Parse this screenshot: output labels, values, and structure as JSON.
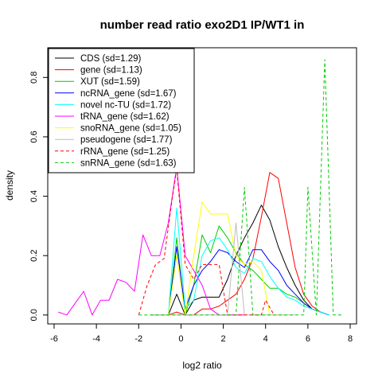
{
  "chart_data": {
    "type": "line",
    "title": "number read ratio exo2D1 IP/WT1 in",
    "xlabel": "log2 ratio",
    "ylabel": "density",
    "xlim": [
      -6.3,
      8.3
    ],
    "ylim": [
      -0.03,
      0.9
    ],
    "x_ticks": [
      -6,
      -4,
      -2,
      0,
      2,
      4,
      6,
      8
    ],
    "y_ticks": [
      0.0,
      0.2,
      0.4,
      0.6,
      0.8
    ],
    "legend_position": "top-left",
    "grid": false,
    "series": [
      {
        "name": "CDS (sd=1.29)",
        "color": "#000000",
        "dash": "solid",
        "points": [
          [
            -1.4,
            0.0
          ],
          [
            -1.0,
            0.0
          ],
          [
            -0.6,
            0.0
          ],
          [
            -0.2,
            0.07
          ],
          [
            0.2,
            0.0
          ],
          [
            0.6,
            0.05
          ],
          [
            1.0,
            0.06
          ],
          [
            1.4,
            0.06
          ],
          [
            1.8,
            0.06
          ],
          [
            2.2,
            0.12
          ],
          [
            2.6,
            0.2
          ],
          [
            3.0,
            0.26
          ],
          [
            3.4,
            0.31
          ],
          [
            3.8,
            0.37
          ],
          [
            4.2,
            0.32
          ],
          [
            4.6,
            0.23
          ],
          [
            5.0,
            0.16
          ],
          [
            5.4,
            0.1
          ],
          [
            5.8,
            0.05
          ],
          [
            6.2,
            0.02
          ],
          [
            6.6,
            0.01
          ],
          [
            7.0,
            0.0
          ]
        ]
      },
      {
        "name": "gene (sd=1.13)",
        "color": "#ff0000",
        "dash": "solid",
        "points": [
          [
            -1.4,
            0.0
          ],
          [
            -1.0,
            0.0
          ],
          [
            -0.6,
            0.0
          ],
          [
            -0.2,
            0.01
          ],
          [
            0.2,
            0.0
          ],
          [
            0.6,
            0.0
          ],
          [
            1.0,
            0.02
          ],
          [
            1.4,
            0.02
          ],
          [
            1.8,
            0.03
          ],
          [
            2.2,
            0.05
          ],
          [
            2.6,
            0.07
          ],
          [
            3.0,
            0.12
          ],
          [
            3.4,
            0.19
          ],
          [
            3.8,
            0.33
          ],
          [
            4.2,
            0.48
          ],
          [
            4.6,
            0.46
          ],
          [
            5.0,
            0.31
          ],
          [
            5.4,
            0.16
          ],
          [
            5.8,
            0.07
          ],
          [
            6.2,
            0.03
          ],
          [
            6.6,
            0.01
          ],
          [
            7.0,
            0.0
          ]
        ]
      },
      {
        "name": "XUT (sd=1.59)",
        "color": "#00cc00",
        "dash": "solid",
        "points": [
          [
            -1.4,
            0.0
          ],
          [
            -1.0,
            0.0
          ],
          [
            -0.6,
            0.0
          ],
          [
            -0.2,
            0.26
          ],
          [
            0.2,
            0.0
          ],
          [
            0.6,
            0.1
          ],
          [
            1.0,
            0.27
          ],
          [
            1.4,
            0.21
          ],
          [
            1.8,
            0.3
          ],
          [
            2.2,
            0.26
          ],
          [
            2.6,
            0.21
          ],
          [
            3.0,
            0.17
          ],
          [
            3.4,
            0.15
          ],
          [
            3.8,
            0.12
          ],
          [
            4.2,
            0.09
          ],
          [
            4.6,
            0.09
          ],
          [
            5.0,
            0.07
          ],
          [
            5.4,
            0.06
          ],
          [
            5.8,
            0.04
          ],
          [
            6.2,
            0.02
          ],
          [
            6.6,
            0.01
          ],
          [
            7.0,
            0.0
          ]
        ]
      },
      {
        "name": "ncRNA_gene (sd=1.67)",
        "color": "#0000ff",
        "dash": "solid",
        "points": [
          [
            -1.4,
            0.0
          ],
          [
            -1.0,
            0.0
          ],
          [
            -0.6,
            0.0
          ],
          [
            -0.2,
            0.23
          ],
          [
            0.2,
            0.02
          ],
          [
            0.6,
            0.1
          ],
          [
            1.0,
            0.15
          ],
          [
            1.4,
            0.18
          ],
          [
            1.8,
            0.22
          ],
          [
            2.2,
            0.21
          ],
          [
            2.6,
            0.18
          ],
          [
            3.0,
            0.16
          ],
          [
            3.4,
            0.22
          ],
          [
            3.8,
            0.22
          ],
          [
            4.2,
            0.18
          ],
          [
            4.6,
            0.15
          ],
          [
            5.0,
            0.1
          ],
          [
            5.4,
            0.07
          ],
          [
            5.8,
            0.04
          ],
          [
            6.2,
            0.02
          ],
          [
            6.6,
            0.01
          ],
          [
            7.0,
            0.0
          ]
        ]
      },
      {
        "name": "novel nc-TU (sd=1.72)",
        "color": "#00ffff",
        "dash": "solid",
        "points": [
          [
            -1.4,
            0.0
          ],
          [
            -1.0,
            0.0
          ],
          [
            -0.6,
            0.0
          ],
          [
            -0.2,
            0.36
          ],
          [
            0.2,
            0.02
          ],
          [
            0.6,
            0.05
          ],
          [
            1.0,
            0.2
          ],
          [
            1.4,
            0.25
          ],
          [
            1.8,
            0.26
          ],
          [
            2.2,
            0.22
          ],
          [
            2.6,
            0.16
          ],
          [
            3.0,
            0.14
          ],
          [
            3.4,
            0.19
          ],
          [
            3.8,
            0.18
          ],
          [
            4.2,
            0.13
          ],
          [
            4.6,
            0.09
          ],
          [
            5.0,
            0.06
          ],
          [
            5.4,
            0.05
          ],
          [
            5.8,
            0.03
          ],
          [
            6.2,
            0.02
          ],
          [
            6.6,
            0.01
          ],
          [
            7.0,
            0.0
          ]
        ]
      },
      {
        "name": "tRNA_gene (sd=1.62)",
        "color": "#ff00ff",
        "dash": "solid",
        "points": [
          [
            -5.8,
            0.01
          ],
          [
            -5.4,
            0.0
          ],
          [
            -5.0,
            0.04
          ],
          [
            -4.6,
            0.08
          ],
          [
            -4.2,
            0.0
          ],
          [
            -3.8,
            0.05
          ],
          [
            -3.4,
            0.05
          ],
          [
            -3.0,
            0.12
          ],
          [
            -2.6,
            0.11
          ],
          [
            -2.2,
            0.08
          ],
          [
            -1.8,
            0.27
          ],
          [
            -1.4,
            0.2
          ],
          [
            -1.0,
            0.2
          ],
          [
            -0.6,
            0.31
          ],
          [
            -0.2,
            0.5
          ],
          [
            0.2,
            0.2
          ],
          [
            0.6,
            0.15
          ],
          [
            1.0,
            0.1
          ],
          [
            1.4,
            0.02
          ],
          [
            1.8,
            0.0
          ],
          [
            2.2,
            0.0
          ],
          [
            2.6,
            0.0
          ],
          [
            3.0,
            0.0
          ]
        ]
      },
      {
        "name": "snoRNA_gene (sd=1.05)",
        "color": "#ffff00",
        "dash": "solid",
        "points": [
          [
            -1.4,
            0.0
          ],
          [
            -1.0,
            0.0
          ],
          [
            -0.6,
            0.0
          ],
          [
            -0.2,
            0.2
          ],
          [
            0.2,
            0.0
          ],
          [
            0.6,
            0.2
          ],
          [
            1.0,
            0.38
          ],
          [
            1.4,
            0.34
          ],
          [
            1.8,
            0.34
          ],
          [
            2.2,
            0.34
          ],
          [
            2.6,
            0.2
          ],
          [
            3.0,
            0.17
          ],
          [
            3.4,
            0.18
          ],
          [
            3.8,
            0.15
          ],
          [
            4.2,
            0.0
          ],
          [
            4.6,
            0.0
          ],
          [
            5.0,
            0.0
          ]
        ]
      },
      {
        "name": "pseudogene (sd=1.77)",
        "color": "#bebebe",
        "dash": "solid",
        "points": [
          [
            -1.4,
            0.0
          ],
          [
            -1.0,
            0.0
          ],
          [
            -0.6,
            0.0
          ],
          [
            -0.2,
            0.0
          ],
          [
            0.2,
            0.0
          ],
          [
            0.6,
            0.0
          ],
          [
            1.0,
            0.0
          ],
          [
            1.4,
            0.0
          ],
          [
            1.8,
            0.0
          ],
          [
            2.2,
            0.0
          ],
          [
            2.6,
            0.31
          ],
          [
            3.0,
            0.0
          ],
          [
            3.4,
            0.0
          ],
          [
            3.8,
            0.0
          ],
          [
            4.2,
            0.0
          ],
          [
            4.6,
            0.0
          ],
          [
            5.0,
            0.0
          ],
          [
            5.4,
            0.0
          ]
        ]
      },
      {
        "name": "rRNA_gene (sd=1.25)",
        "color": "#ff0000",
        "dash": "dashed",
        "points": [
          [
            -2.0,
            0.0
          ],
          [
            -1.6,
            0.1
          ],
          [
            -1.2,
            0.17
          ],
          [
            -0.8,
            0.19
          ],
          [
            -0.4,
            0.4
          ],
          [
            -0.2,
            0.49
          ],
          [
            0.2,
            0.17
          ],
          [
            0.6,
            0.12
          ],
          [
            1.0,
            0.17
          ],
          [
            1.4,
            0.17
          ],
          [
            1.8,
            0.17
          ],
          [
            2.2,
            0.0
          ],
          [
            2.6,
            0.0
          ],
          [
            3.0,
            0.0
          ],
          [
            3.4,
            0.0
          ],
          [
            3.8,
            0.0
          ],
          [
            4.0,
            0.05
          ],
          [
            4.4,
            0.0
          ]
        ]
      },
      {
        "name": "snRNA_gene (sd=1.63)",
        "color": "#00cc00",
        "dash": "dashed",
        "points": [
          [
            -2.0,
            0.0
          ],
          [
            -1.0,
            0.0
          ],
          [
            -0.2,
            0.0
          ],
          [
            0.2,
            0.0
          ],
          [
            1.0,
            0.0
          ],
          [
            1.8,
            0.0
          ],
          [
            2.6,
            0.0
          ],
          [
            3.0,
            0.43
          ],
          [
            3.4,
            0.0
          ],
          [
            4.2,
            0.0
          ],
          [
            5.0,
            0.0
          ],
          [
            5.8,
            0.0
          ],
          [
            6.0,
            0.43
          ],
          [
            6.4,
            0.0
          ],
          [
            6.8,
            0.86
          ],
          [
            7.2,
            0.0
          ],
          [
            7.6,
            0.0
          ]
        ]
      }
    ]
  }
}
